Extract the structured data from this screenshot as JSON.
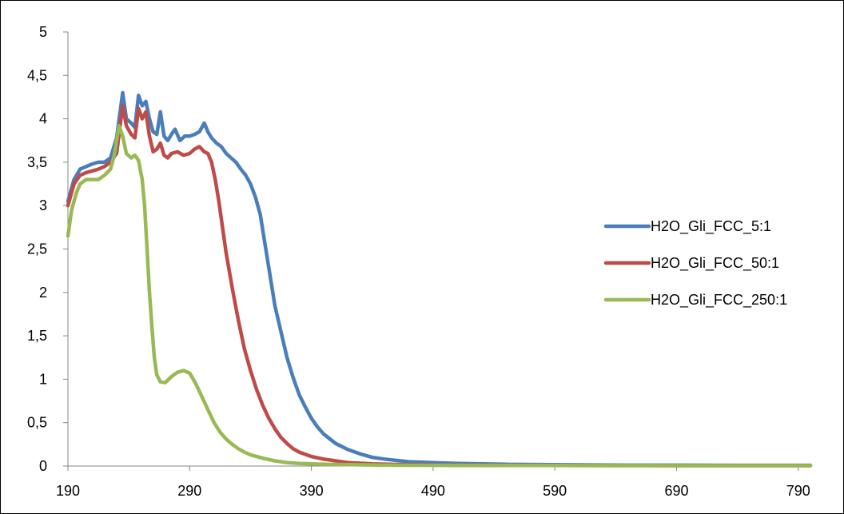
{
  "chart_data": {
    "type": "line",
    "title": "",
    "xlabel": "",
    "ylabel": "",
    "xlim": [
      190,
      800
    ],
    "ylim": [
      0,
      5
    ],
    "x_ticks": [
      "190",
      "290",
      "390",
      "490",
      "590",
      "690",
      "790"
    ],
    "y_ticks": [
      "0",
      "0,5",
      "1",
      "1,5",
      "2",
      "2,5",
      "3",
      "3,5",
      "4",
      "4,5",
      "5"
    ],
    "grid": false,
    "legend_position": "right",
    "series": [
      {
        "name": "H2O_Gli_FCC_5:1",
        "color": "#4a7ebb",
        "points": [
          [
            190,
            3.05
          ],
          [
            195,
            3.3
          ],
          [
            200,
            3.42
          ],
          [
            205,
            3.45
          ],
          [
            210,
            3.48
          ],
          [
            215,
            3.5
          ],
          [
            220,
            3.5
          ],
          [
            225,
            3.55
          ],
          [
            230,
            3.78
          ],
          [
            235,
            4.3
          ],
          [
            238,
            4.0
          ],
          [
            242,
            3.95
          ],
          [
            245,
            3.9
          ],
          [
            248,
            4.27
          ],
          [
            251,
            4.15
          ],
          [
            254,
            4.2
          ],
          [
            257,
            4.0
          ],
          [
            260,
            3.85
          ],
          [
            263,
            3.82
          ],
          [
            266,
            4.08
          ],
          [
            269,
            3.8
          ],
          [
            272,
            3.75
          ],
          [
            275,
            3.82
          ],
          [
            278,
            3.88
          ],
          [
            282,
            3.75
          ],
          [
            286,
            3.8
          ],
          [
            290,
            3.8
          ],
          [
            294,
            3.82
          ],
          [
            298,
            3.85
          ],
          [
            302,
            3.95
          ],
          [
            305,
            3.85
          ],
          [
            308,
            3.78
          ],
          [
            312,
            3.72
          ],
          [
            316,
            3.68
          ],
          [
            320,
            3.6
          ],
          [
            324,
            3.55
          ],
          [
            328,
            3.5
          ],
          [
            332,
            3.42
          ],
          [
            336,
            3.35
          ],
          [
            340,
            3.25
          ],
          [
            344,
            3.1
          ],
          [
            348,
            2.9
          ],
          [
            352,
            2.55
          ],
          [
            356,
            2.2
          ],
          [
            360,
            1.85
          ],
          [
            365,
            1.55
          ],
          [
            370,
            1.25
          ],
          [
            375,
            1.02
          ],
          [
            380,
            0.82
          ],
          [
            385,
            0.68
          ],
          [
            390,
            0.55
          ],
          [
            395,
            0.45
          ],
          [
            400,
            0.37
          ],
          [
            410,
            0.26
          ],
          [
            420,
            0.19
          ],
          [
            430,
            0.14
          ],
          [
            440,
            0.1
          ],
          [
            450,
            0.08
          ],
          [
            470,
            0.05
          ],
          [
            490,
            0.04
          ],
          [
            510,
            0.03
          ],
          [
            550,
            0.02
          ],
          [
            600,
            0.015
          ],
          [
            650,
            0.01
          ],
          [
            700,
            0.01
          ],
          [
            750,
            0.008
          ],
          [
            800,
            0.008
          ]
        ]
      },
      {
        "name": "H2O_Gli_FCC_50:1",
        "color": "#be4b48",
        "points": [
          [
            190,
            3.0
          ],
          [
            195,
            3.25
          ],
          [
            200,
            3.35
          ],
          [
            205,
            3.38
          ],
          [
            210,
            3.4
          ],
          [
            215,
            3.42
          ],
          [
            220,
            3.45
          ],
          [
            225,
            3.5
          ],
          [
            230,
            3.6
          ],
          [
            235,
            4.15
          ],
          [
            238,
            3.92
          ],
          [
            242,
            3.82
          ],
          [
            245,
            3.78
          ],
          [
            248,
            4.12
          ],
          [
            251,
            4.0
          ],
          [
            254,
            4.08
          ],
          [
            257,
            3.8
          ],
          [
            260,
            3.62
          ],
          [
            263,
            3.65
          ],
          [
            266,
            3.72
          ],
          [
            269,
            3.58
          ],
          [
            272,
            3.55
          ],
          [
            275,
            3.6
          ],
          [
            280,
            3.62
          ],
          [
            285,
            3.58
          ],
          [
            290,
            3.6
          ],
          [
            294,
            3.65
          ],
          [
            298,
            3.68
          ],
          [
            302,
            3.62
          ],
          [
            305,
            3.6
          ],
          [
            308,
            3.5
          ],
          [
            311,
            3.3
          ],
          [
            314,
            3.05
          ],
          [
            317,
            2.75
          ],
          [
            320,
            2.45
          ],
          [
            325,
            2.05
          ],
          [
            330,
            1.68
          ],
          [
            335,
            1.35
          ],
          [
            340,
            1.1
          ],
          [
            345,
            0.88
          ],
          [
            350,
            0.7
          ],
          [
            355,
            0.55
          ],
          [
            360,
            0.43
          ],
          [
            365,
            0.33
          ],
          [
            370,
            0.26
          ],
          [
            375,
            0.2
          ],
          [
            380,
            0.16
          ],
          [
            390,
            0.11
          ],
          [
            400,
            0.08
          ],
          [
            420,
            0.04
          ],
          [
            440,
            0.025
          ],
          [
            460,
            0.018
          ],
          [
            500,
            0.01
          ],
          [
            550,
            0.008
          ],
          [
            600,
            0.006
          ],
          [
            700,
            0.005
          ],
          [
            800,
            0.005
          ]
        ]
      },
      {
        "name": "H2O_Gli_FCC_250:1",
        "color": "#98b954",
        "points": [
          [
            190,
            2.65
          ],
          [
            193,
            2.95
          ],
          [
            197,
            3.15
          ],
          [
            200,
            3.25
          ],
          [
            205,
            3.3
          ],
          [
            210,
            3.3
          ],
          [
            215,
            3.3
          ],
          [
            220,
            3.35
          ],
          [
            225,
            3.42
          ],
          [
            228,
            3.58
          ],
          [
            232,
            3.92
          ],
          [
            235,
            3.8
          ],
          [
            238,
            3.6
          ],
          [
            242,
            3.55
          ],
          [
            245,
            3.58
          ],
          [
            248,
            3.52
          ],
          [
            251,
            3.3
          ],
          [
            253,
            3.0
          ],
          [
            255,
            2.5
          ],
          [
            257,
            2.0
          ],
          [
            259,
            1.6
          ],
          [
            261,
            1.25
          ],
          [
            263,
            1.05
          ],
          [
            266,
            0.97
          ],
          [
            270,
            0.96
          ],
          [
            275,
            1.03
          ],
          [
            280,
            1.08
          ],
          [
            285,
            1.1
          ],
          [
            290,
            1.07
          ],
          [
            295,
            0.95
          ],
          [
            300,
            0.8
          ],
          [
            305,
            0.65
          ],
          [
            310,
            0.5
          ],
          [
            315,
            0.39
          ],
          [
            320,
            0.31
          ],
          [
            325,
            0.25
          ],
          [
            330,
            0.2
          ],
          [
            335,
            0.16
          ],
          [
            340,
            0.13
          ],
          [
            350,
            0.09
          ],
          [
            360,
            0.06
          ],
          [
            370,
            0.04
          ],
          [
            380,
            0.03
          ],
          [
            400,
            0.02
          ],
          [
            450,
            0.01
          ],
          [
            500,
            0.008
          ],
          [
            600,
            0.006
          ],
          [
            700,
            0.005
          ],
          [
            800,
            0.005
          ]
        ]
      }
    ]
  }
}
